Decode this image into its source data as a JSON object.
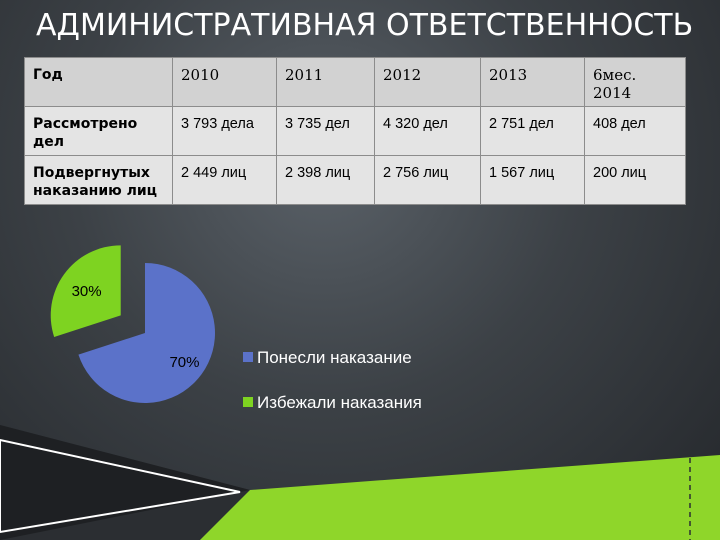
{
  "slide_title": "АДМИНИСТРАТИВНАЯ ОТВЕТСТВЕННОСТЬ",
  "table": {
    "header": [
      "Год",
      "2010",
      "2011",
      "2012",
      "2013",
      "6мес. 2014"
    ],
    "rows": [
      [
        "Рассмотрено дел",
        "3 793 дела",
        "3 735 дел",
        "4 320 дел",
        "2 751 дел",
        "408 дел"
      ],
      [
        "Подвергнутых наказанию лиц",
        "2 449 лиц",
        "2 398 лиц",
        "2 756 лиц",
        "1 567 лиц",
        "200 лиц"
      ]
    ]
  },
  "chart_data": {
    "type": "pie",
    "title": "",
    "series": [
      {
        "name": "Понесли наказание",
        "value": 70,
        "label": "70%",
        "color": "#5b72c9"
      },
      {
        "name": "Избежали наказания",
        "value": 30,
        "label": "30%",
        "color": "#7ed321"
      }
    ],
    "legend": "right",
    "exploded_slice": "Избежали наказания"
  },
  "colors": {
    "accent_green": "#8fd62a",
    "background": "#3c4146"
  }
}
